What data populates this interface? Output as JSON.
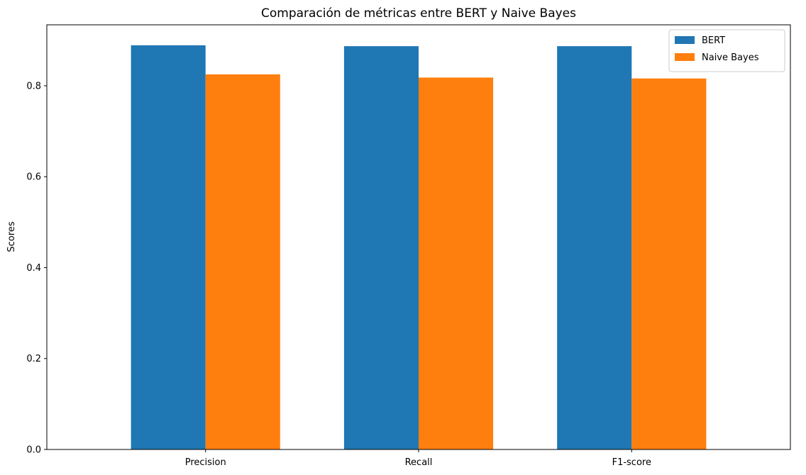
{
  "chart_data": {
    "type": "bar",
    "title": "Comparación de métricas entre BERT y Naive Bayes",
    "xlabel": "",
    "ylabel": "Scores",
    "categories": [
      "Precision",
      "Recall",
      "F1-score"
    ],
    "series": [
      {
        "name": "BERT",
        "values": [
          0.889,
          0.887,
          0.887
        ],
        "color": "#1f77b4"
      },
      {
        "name": "Naive Bayes",
        "values": [
          0.825,
          0.818,
          0.816
        ],
        "color": "#ff7f0e"
      }
    ],
    "ylim": [
      0,
      0.934
    ],
    "yticks": [
      0.0,
      0.2,
      0.4,
      0.6,
      0.8
    ],
    "ytick_labels": [
      "0.0",
      "0.2",
      "0.4",
      "0.6",
      "0.8"
    ],
    "grid": false,
    "legend_position": "top-right"
  }
}
